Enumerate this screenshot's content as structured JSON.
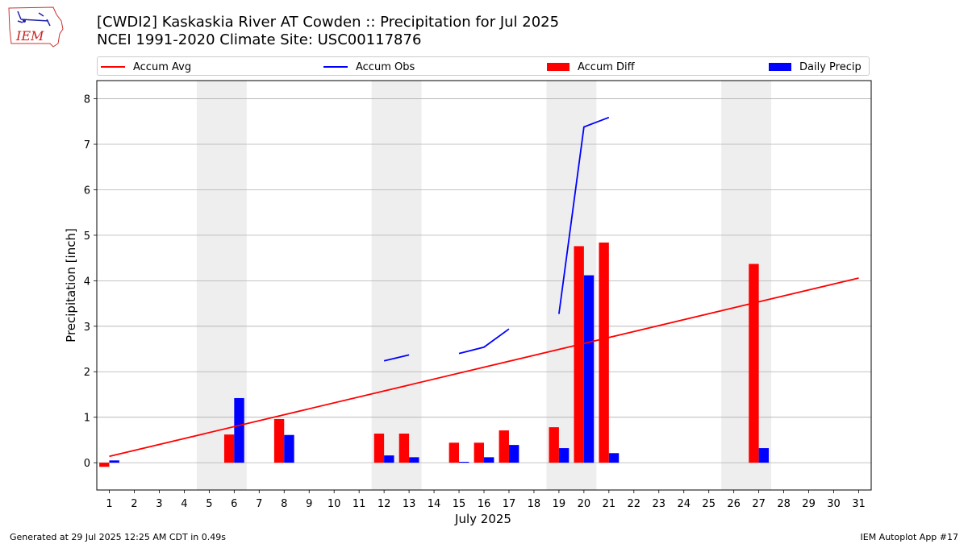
{
  "header": {
    "title_line1": "[CWDI2] Kaskaskia River  AT Cowden :: Precipitation for Jul 2025",
    "title_line2": "NCEI 1991-2020 Climate Site: USC00117876",
    "logo_text": "IEM"
  },
  "footer": {
    "generated": "Generated at 29 Jul 2025 12:25 AM CDT in 0.49s",
    "app": "IEM Autoplot App #17"
  },
  "colors": {
    "avg": "#ff0000",
    "obs": "#0000ff",
    "diff": "#ff0000",
    "daily": "#0000ff",
    "weekend": "#eeeeee",
    "grid": "#b0b0b0"
  },
  "chart_data": {
    "type": "bar",
    "xlabel": "July 2025",
    "ylabel": "Precipitation [inch]",
    "xlim": [
      0.5,
      31.5
    ],
    "ylim": [
      -0.6,
      8.4
    ],
    "yticks": [
      0,
      1,
      2,
      3,
      4,
      5,
      6,
      7,
      8
    ],
    "grid": true,
    "legend_position": "top",
    "legend": [
      "Accum Avg",
      "Accum Obs",
      "Accum Diff",
      "Daily Precip"
    ],
    "days": [
      1,
      2,
      3,
      4,
      5,
      6,
      7,
      8,
      9,
      10,
      11,
      12,
      13,
      14,
      15,
      16,
      17,
      18,
      19,
      20,
      21,
      22,
      23,
      24,
      25,
      26,
      27,
      28,
      29,
      30,
      31
    ],
    "shaded_days": [
      [
        5,
        6
      ],
      [
        12,
        13
      ],
      [
        19,
        20
      ],
      [
        26,
        27
      ]
    ],
    "accum_avg": {
      "x": [
        1,
        31
      ],
      "y": [
        0.14,
        4.06
      ]
    },
    "accum_obs_segments": [
      {
        "x": [
          12,
          13
        ],
        "y": [
          2.24,
          2.37
        ]
      },
      {
        "x": [
          15,
          16,
          17
        ],
        "y": [
          2.4,
          2.54,
          2.94
        ]
      },
      {
        "x": [
          19,
          20,
          21
        ],
        "y": [
          3.27,
          7.38,
          7.59
        ]
      }
    ],
    "accum_diff": [
      {
        "day": 1,
        "value": -0.09
      },
      {
        "day": 6,
        "value": 0.62
      },
      {
        "day": 8,
        "value": 0.96
      },
      {
        "day": 12,
        "value": 0.64
      },
      {
        "day": 13,
        "value": 0.64
      },
      {
        "day": 15,
        "value": 0.44
      },
      {
        "day": 16,
        "value": 0.44
      },
      {
        "day": 17,
        "value": 0.71
      },
      {
        "day": 19,
        "value": 0.78
      },
      {
        "day": 20,
        "value": 4.76
      },
      {
        "day": 21,
        "value": 4.84
      },
      {
        "day": 27,
        "value": 4.37
      }
    ],
    "daily_precip": [
      {
        "day": 1,
        "value": 0.05
      },
      {
        "day": 6,
        "value": 1.42
      },
      {
        "day": 8,
        "value": 0.61
      },
      {
        "day": 12,
        "value": 0.16
      },
      {
        "day": 13,
        "value": 0.12
      },
      {
        "day": 15,
        "value": 0.02
      },
      {
        "day": 16,
        "value": 0.12
      },
      {
        "day": 17,
        "value": 0.39
      },
      {
        "day": 19,
        "value": 0.32
      },
      {
        "day": 20,
        "value": 4.12
      },
      {
        "day": 21,
        "value": 0.21
      },
      {
        "day": 27,
        "value": 0.32
      }
    ]
  }
}
